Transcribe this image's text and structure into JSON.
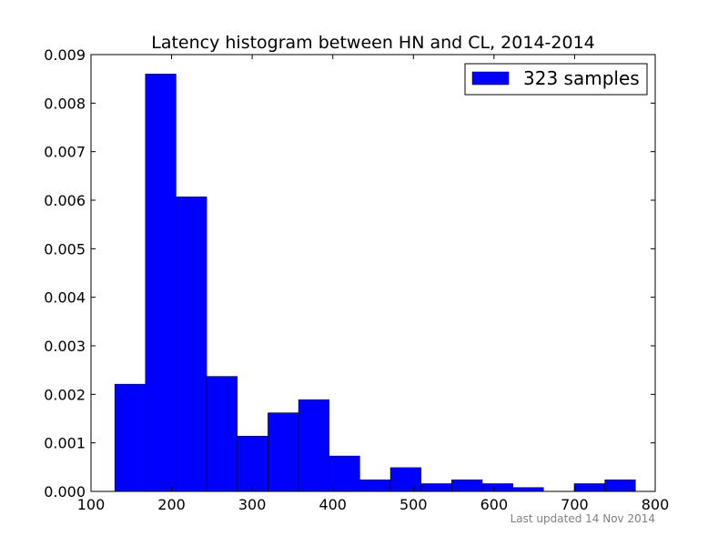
{
  "chart_data": {
    "type": "bar",
    "title": "Latency histogram between HN and CL, 2014-2014",
    "xlabel": "",
    "ylabel": "",
    "xlim": [
      100,
      800
    ],
    "ylim": [
      0,
      0.009
    ],
    "x_ticks": [
      "100",
      "200",
      "300",
      "400",
      "500",
      "600",
      "700",
      "800"
    ],
    "y_ticks": [
      "0.000",
      "0.001",
      "0.002",
      "0.003",
      "0.004",
      "0.005",
      "0.006",
      "0.007",
      "0.008",
      "0.009"
    ],
    "series": [
      {
        "name": "323 samples",
        "color": "#0000ff",
        "bins": [
          {
            "x0": 129.5,
            "x1": 167.5,
            "value": 0.00221
          },
          {
            "x0": 167.5,
            "x1": 205.5,
            "value": 0.0086
          },
          {
            "x0": 205.5,
            "x1": 243.5,
            "value": 0.00607
          },
          {
            "x0": 243.5,
            "x1": 281.5,
            "value": 0.00237
          },
          {
            "x0": 281.5,
            "x1": 319.5,
            "value": 0.00114
          },
          {
            "x0": 319.5,
            "x1": 357.5,
            "value": 0.00162
          },
          {
            "x0": 357.5,
            "x1": 395.5,
            "value": 0.00189
          },
          {
            "x0": 395.5,
            "x1": 433.5,
            "value": 0.00073
          },
          {
            "x0": 433.5,
            "x1": 471.5,
            "value": 0.00024
          },
          {
            "x0": 471.5,
            "x1": 509.5,
            "value": 0.00049
          },
          {
            "x0": 509.5,
            "x1": 547.5,
            "value": 0.00016
          },
          {
            "x0": 547.5,
            "x1": 585.5,
            "value": 0.00024
          },
          {
            "x0": 585.5,
            "x1": 623.5,
            "value": 0.00016
          },
          {
            "x0": 623.5,
            "x1": 661.5,
            "value": 8e-05
          },
          {
            "x0": 661.5,
            "x1": 699.5,
            "value": 0.0
          },
          {
            "x0": 699.5,
            "x1": 737.5,
            "value": 0.00016
          },
          {
            "x0": 737.5,
            "x1": 775.5,
            "value": 0.00024
          }
        ]
      }
    ],
    "legend": {
      "position": "top-right"
    },
    "grid": false
  },
  "footer": {
    "note": "Last updated 14 Nov 2014"
  }
}
